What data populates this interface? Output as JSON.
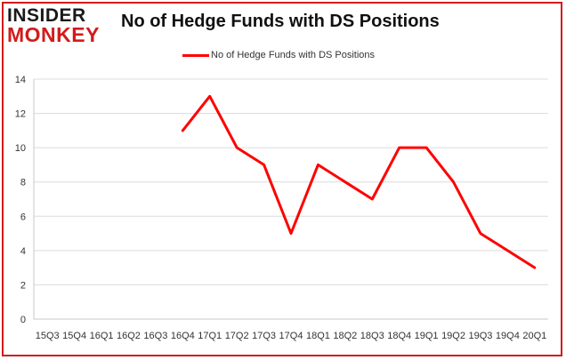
{
  "logo": {
    "line1": "INSIDER",
    "line2": "MONKEY"
  },
  "chart_data": {
    "type": "line",
    "title": "No of Hedge Funds with DS Positions",
    "xlabel": "",
    "ylabel": "",
    "categories": [
      "15Q3",
      "15Q4",
      "16Q1",
      "16Q2",
      "16Q3",
      "16Q4",
      "17Q1",
      "17Q2",
      "17Q3",
      "17Q4",
      "18Q1",
      "18Q2",
      "18Q3",
      "18Q4",
      "19Q1",
      "19Q2",
      "19Q3",
      "19Q4",
      "20Q1"
    ],
    "series": [
      {
        "name": "No of Hedge Funds with DS Positions",
        "values": [
          null,
          null,
          null,
          null,
          null,
          11,
          13,
          10,
          9,
          5,
          9,
          8,
          7,
          10,
          10,
          8,
          5,
          4,
          3
        ]
      }
    ],
    "ylim": [
      0,
      14
    ],
    "yticks": [
      0,
      2,
      4,
      6,
      8,
      10,
      12,
      14
    ],
    "grid": true,
    "legend": "top-center",
    "line_color": "#ff0000"
  }
}
